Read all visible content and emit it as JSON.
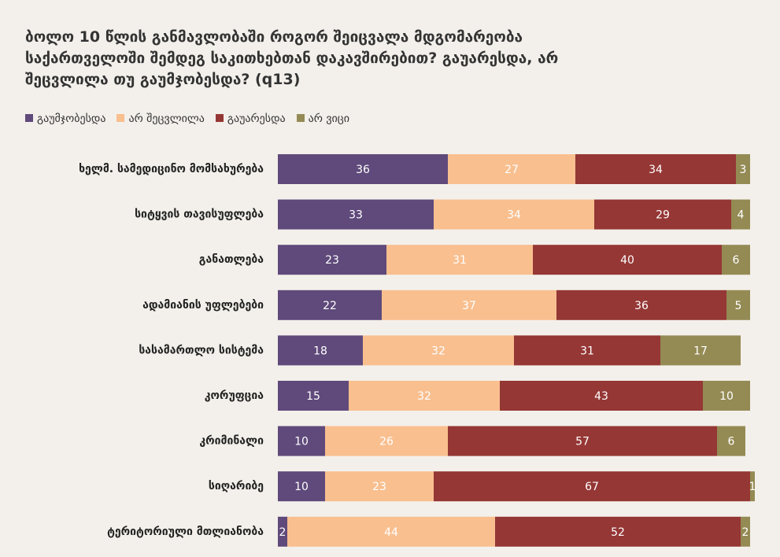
{
  "chart_data": {
    "type": "stacked-bar-horizontal",
    "title": "ბოლო 10 წლის განმავლობაში როგორ შეიცვალა მდგომარეობა საქართველოში შემდეგ საკითხებთან დაკავშირებით? გაუარესდა, არ შეცვლილა თუ გაუმჯობესდა? (q13)",
    "categories": [
      "ხელმ. სამედიცინო მომსახურება",
      "სიტყვის თავისუფლება",
      "განათლება",
      "ადამიანის უფლებები",
      "სასამართლო სისტემა",
      "კორუფცია",
      "კრიმინალი",
      "სიღარიბე",
      "ტერიტორიული მთლიანობა"
    ],
    "series": [
      {
        "name": "გაუმჯობესდა",
        "color": "#5f4a7b",
        "values": [
          36,
          33,
          23,
          22,
          18,
          15,
          10,
          10,
          2
        ]
      },
      {
        "name": "არ შეცვლილა",
        "color": "#f9bf8f",
        "values": [
          27,
          34,
          31,
          37,
          32,
          32,
          26,
          23,
          44
        ]
      },
      {
        "name": "გაუარესდა",
        "color": "#953735",
        "values": [
          34,
          29,
          40,
          36,
          31,
          43,
          57,
          67,
          52
        ]
      },
      {
        "name": "არ ვიცი",
        "color": "#948a54",
        "values": [
          3,
          4,
          6,
          5,
          17,
          10,
          6,
          1,
          2
        ]
      }
    ],
    "xlim": [
      0,
      100
    ]
  }
}
